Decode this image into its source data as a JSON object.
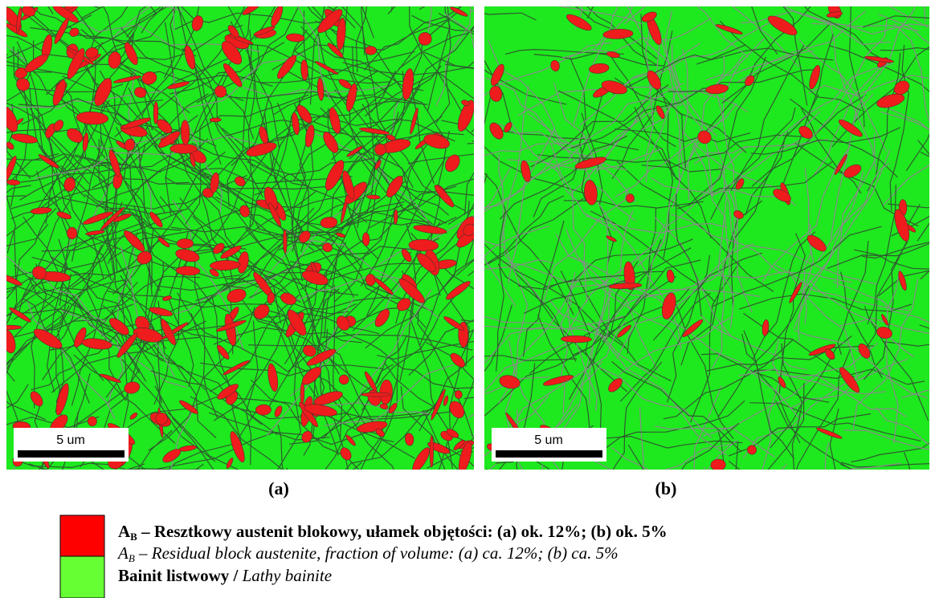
{
  "panels": [
    {
      "label": "(a)",
      "scale_bar": "5 um"
    },
    {
      "label": "(b)",
      "scale_bar": "5 um"
    }
  ],
  "legend": [
    {
      "symbol": "A",
      "subscript": "B",
      "text": "– Resztkowy austenit blokowy, ułamek objętości: (a) ok. 12%; (b) ok. 5%",
      "symbol_en": "A",
      "subscript_en": "B",
      "text_en": "– Residual block austenite, fraction of volume: (a) ca. 12%; (b) ca. 5%"
    },
    {
      "text": "Bainit listwowy /",
      "text_en": "Lathy bainite"
    }
  ]
}
